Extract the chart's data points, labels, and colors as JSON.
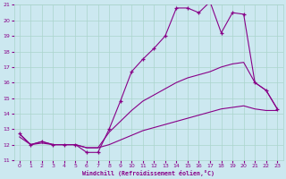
{
  "xlabel": "Windchill (Refroidissement éolien,°C)",
  "bg_color": "#cce8f0",
  "grid_color": "#aad4cc",
  "line_color": "#880088",
  "xlim": [
    -0.5,
    23.5
  ],
  "ylim": [
    11,
    21
  ],
  "yticks": [
    11,
    12,
    13,
    14,
    15,
    16,
    17,
    18,
    19,
    20,
    21
  ],
  "xticks": [
    0,
    1,
    2,
    3,
    4,
    5,
    6,
    7,
    8,
    9,
    10,
    11,
    12,
    13,
    14,
    15,
    16,
    17,
    18,
    19,
    20,
    21,
    22,
    23
  ],
  "series": [
    {
      "x": [
        0,
        1,
        2,
        3,
        4,
        5,
        6,
        7,
        8,
        9,
        10,
        11,
        12,
        13,
        14,
        15,
        16,
        17,
        18,
        19,
        20,
        21,
        22,
        23
      ],
      "y": [
        12.7,
        12.0,
        12.2,
        12.0,
        12.0,
        12.0,
        11.5,
        11.5,
        13.0,
        14.8,
        16.7,
        17.5,
        18.2,
        19.0,
        20.8,
        20.8,
        20.5,
        21.2,
        19.2,
        20.5,
        20.4,
        16.0,
        15.5,
        14.3
      ],
      "marker": true
    },
    {
      "x": [
        0,
        1,
        2,
        3,
        4,
        5,
        6,
        7,
        8,
        9,
        10,
        11,
        12,
        13,
        14,
        15,
        16,
        17,
        18,
        19,
        20,
        21,
        22,
        23
      ],
      "y": [
        12.7,
        12.0,
        12.2,
        12.0,
        12.0,
        12.0,
        11.8,
        11.8,
        12.8,
        13.5,
        14.2,
        14.8,
        15.2,
        15.6,
        16.0,
        16.3,
        16.5,
        16.7,
        17.0,
        17.2,
        17.3,
        16.0,
        15.5,
        14.3
      ],
      "marker": false
    },
    {
      "x": [
        0,
        1,
        2,
        3,
        4,
        5,
        6,
        7,
        8,
        9,
        10,
        11,
        12,
        13,
        14,
        15,
        16,
        17,
        18,
        19,
        20,
        21,
        22,
        23
      ],
      "y": [
        12.5,
        12.0,
        12.1,
        12.0,
        12.0,
        12.0,
        11.8,
        11.8,
        12.0,
        12.3,
        12.6,
        12.9,
        13.1,
        13.3,
        13.5,
        13.7,
        13.9,
        14.1,
        14.3,
        14.4,
        14.5,
        14.3,
        14.2,
        14.2
      ],
      "marker": false
    }
  ]
}
